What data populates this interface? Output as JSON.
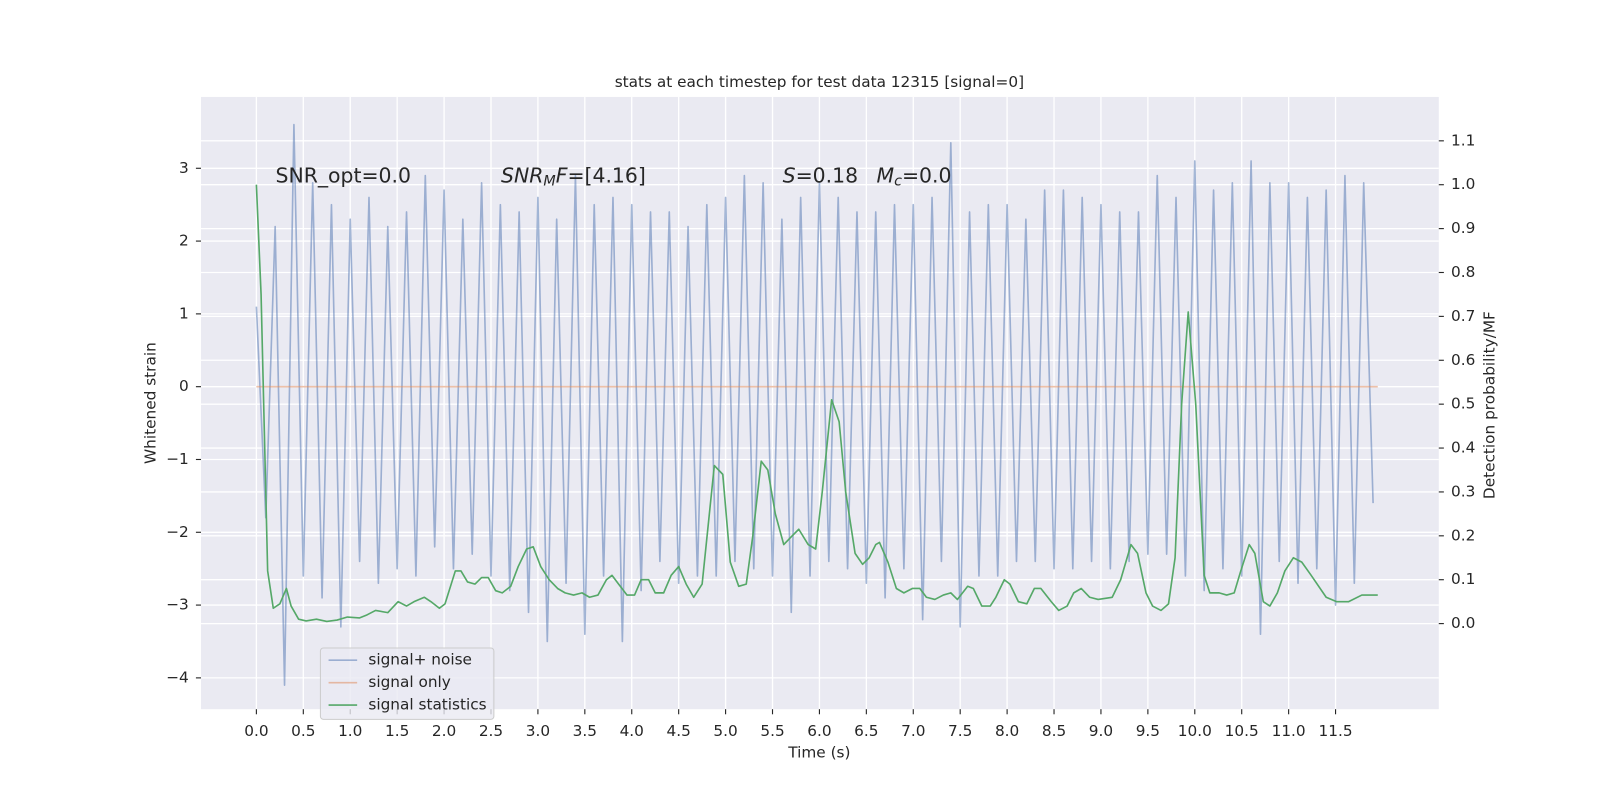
{
  "chart_data": {
    "type": "line",
    "title": "stats at each timestep for test data 12315 [signal=0]",
    "xlabel": "Time (s)",
    "ylabel": "Whitened strain",
    "y2label": "Detection probability/MF",
    "grid": true,
    "legend_loc": "lower left",
    "xlim": [
      -0.59,
      12.6
    ],
    "ylim": [
      -4.43,
      3.98
    ],
    "y2lim": [
      -0.195,
      1.2
    ],
    "xticks": [
      {
        "value": 0,
        "label": "0.0"
      },
      {
        "value": 0.5,
        "label": "0.5"
      },
      {
        "value": 1,
        "label": "1.0"
      },
      {
        "value": 1.5,
        "label": "1.5"
      },
      {
        "value": 2,
        "label": "2.0"
      },
      {
        "value": 2.5,
        "label": "2.5"
      },
      {
        "value": 3,
        "label": "3.0"
      },
      {
        "value": 3.5,
        "label": "3.5"
      },
      {
        "value": 4,
        "label": "4.0"
      },
      {
        "value": 4.5,
        "label": "4.5"
      },
      {
        "value": 5,
        "label": "5.0"
      },
      {
        "value": 5.5,
        "label": "5.5"
      },
      {
        "value": 6,
        "label": "6.0"
      },
      {
        "value": 6.5,
        "label": "6.5"
      },
      {
        "value": 7,
        "label": "7.0"
      },
      {
        "value": 7.5,
        "label": "7.5"
      },
      {
        "value": 8,
        "label": "8.0"
      },
      {
        "value": 8.5,
        "label": "8.5"
      },
      {
        "value": 9,
        "label": "9.0"
      },
      {
        "value": 9.5,
        "label": "9.5"
      },
      {
        "value": 10,
        "label": "10.0"
      },
      {
        "value": 10.5,
        "label": "10.5"
      },
      {
        "value": 11,
        "label": "11.0"
      },
      {
        "value": 11.5,
        "label": "11.5"
      }
    ],
    "yticks": [
      {
        "value": -4,
        "label": "−4"
      },
      {
        "value": -3,
        "label": "−3"
      },
      {
        "value": -2,
        "label": "−2"
      },
      {
        "value": -1,
        "label": "−1"
      },
      0,
      1,
      2,
      3
    ],
    "y2ticks": [
      {
        "value": 0,
        "label": "0.0"
      },
      {
        "value": 0.1,
        "label": "0.1"
      },
      {
        "value": 0.2,
        "label": "0.2"
      },
      {
        "value": 0.3,
        "label": "0.3"
      },
      {
        "value": 0.4,
        "label": "0.4"
      },
      {
        "value": 0.5,
        "label": "0.5"
      },
      {
        "value": 0.6,
        "label": "0.6"
      },
      {
        "value": 0.7,
        "label": "0.7"
      },
      {
        "value": 0.8,
        "label": "0.8"
      },
      {
        "value": 0.9,
        "label": "0.9"
      },
      {
        "value": 1,
        "label": "1.0"
      },
      {
        "value": 1.1,
        "label": "1.1"
      }
    ],
    "annotations": [
      [
        {
          "text": "SNR_opt=0.0"
        }
      ],
      [
        {
          "text": "SNR",
          "italic": true
        },
        {
          "text": "M",
          "italic": true,
          "sub": true
        },
        {
          "text": "F",
          "italic": true
        },
        {
          "text": "=[4.16]"
        }
      ],
      [
        {
          "text": "S",
          "italic": true
        },
        {
          "text": "=0.18"
        }
      ],
      [
        {
          "text": "M",
          "italic": true
        },
        {
          "text": "c",
          "italic": true,
          "sub": true
        },
        {
          "text": "=0.0"
        }
      ]
    ],
    "series": [
      {
        "name": "signal+ noise",
        "color": "#4c72b0",
        "alpha": 0.5,
        "x": [
          0,
          0.1,
          0.2,
          0.3,
          0.4,
          0.5,
          0.6,
          0.7,
          0.8,
          0.9,
          1,
          1.1,
          1.2,
          1.3,
          1.4,
          1.5,
          1.6,
          1.7,
          1.8,
          1.9,
          2,
          2.1,
          2.2,
          2.3,
          2.4,
          2.5,
          2.6,
          2.7,
          2.8,
          2.9,
          3,
          3.1,
          3.2,
          3.3,
          3.4,
          3.5,
          3.6,
          3.7,
          3.8,
          3.9,
          4,
          4.1,
          4.2,
          4.3,
          4.4,
          4.5,
          4.6,
          4.7,
          4.8,
          4.9,
          5,
          5.1,
          5.2,
          5.3,
          5.4,
          5.5,
          5.6,
          5.7,
          5.8,
          5.9,
          6,
          6.1,
          6.2,
          6.3,
          6.4,
          6.5,
          6.6,
          6.7,
          6.8,
          6.9,
          7,
          7.1,
          7.2,
          7.3,
          7.4,
          7.5,
          7.6,
          7.7,
          7.8,
          7.9,
          8,
          8.1,
          8.2,
          8.3,
          8.4,
          8.5,
          8.6,
          8.7,
          8.8,
          8.9,
          9,
          9.1,
          9.2,
          9.3,
          9.4,
          9.5,
          9.6,
          9.7,
          9.8,
          9.9,
          10,
          10.1,
          10.2,
          10.3,
          10.4,
          10.5,
          10.6,
          10.7,
          10.8,
          10.9,
          11,
          11.1,
          11.2,
          11.3,
          11.4,
          11.5,
          11.6,
          11.7,
          11.8,
          11.9
        ],
        "values": [
          1.1,
          -1.8,
          2.2,
          -4.1,
          3.6,
          -2.6,
          2.8,
          -2.9,
          2.5,
          -3.3,
          2.3,
          -2.4,
          2.6,
          -2.7,
          2.2,
          -2.5,
          2.4,
          -2.6,
          2.9,
          -2.2,
          2.7,
          -2.5,
          2.3,
          -2.3,
          2.8,
          -2.6,
          2.5,
          -2.8,
          2.4,
          -3.1,
          2.6,
          -3.5,
          2.3,
          -2.7,
          2.9,
          -3.4,
          2.5,
          -2.6,
          2.6,
          -3.5,
          2.5,
          -2.8,
          2.4,
          -2.4,
          2.4,
          -2.7,
          2.2,
          -2.6,
          2.5,
          -2.6,
          2.6,
          -2.4,
          2.9,
          -2.5,
          2.8,
          -2.6,
          2.3,
          -3.1,
          2.6,
          -2.6,
          2.8,
          -2.4,
          2.6,
          -2.5,
          2.4,
          -2.7,
          2.4,
          -2.9,
          2.5,
          -2.5,
          2.5,
          -3.2,
          2.6,
          -2.4,
          3.35,
          -3.3,
          2.4,
          -2.6,
          2.5,
          -2.6,
          2.5,
          -2.4,
          2.3,
          -2.4,
          2.7,
          -2.5,
          2.7,
          -2.5,
          2.6,
          -2.4,
          2.5,
          -2.5,
          2.4,
          -2.4,
          2.4,
          -2.3,
          2.9,
          -2.3,
          2.6,
          -2.6,
          3.1,
          -2.8,
          2.7,
          -2.5,
          2.8,
          -2.6,
          3.1,
          -3.4,
          2.8,
          -2.4,
          2.8,
          -2.7,
          2.6,
          -2.5,
          2.7,
          -3.0,
          2.9,
          -2.7,
          2.8,
          -1.6
        ]
      },
      {
        "name": "signal only",
        "color": "#dd8452",
        "alpha": 0.5,
        "x": [
          0,
          11.95
        ],
        "values": [
          0,
          0
        ]
      },
      {
        "name": "signal statistics",
        "color": "#55a868",
        "alpha": 1,
        "axis": "y2",
        "x": [
          0,
          0.05,
          0.12,
          0.18,
          0.25,
          0.32,
          0.37,
          0.45,
          0.53,
          0.64,
          0.75,
          0.86,
          0.97,
          1.1,
          1.18,
          1.27,
          1.4,
          1.51,
          1.6,
          1.68,
          1.79,
          1.86,
          1.95,
          2.01,
          2.12,
          2.18,
          2.25,
          2.33,
          2.4,
          2.47,
          2.55,
          2.62,
          2.71,
          2.79,
          2.88,
          2.95,
          3.03,
          3.12,
          3.21,
          3.29,
          3.38,
          3.47,
          3.55,
          3.64,
          3.73,
          3.79,
          3.86,
          3.95,
          4.03,
          4.1,
          4.18,
          4.25,
          4.34,
          4.42,
          4.5,
          4.58,
          4.66,
          4.75,
          4.88,
          4.97,
          5.05,
          5.14,
          5.22,
          5.29,
          5.38,
          5.45,
          5.53,
          5.62,
          5.71,
          5.78,
          5.88,
          5.96,
          6.03,
          6.13,
          6.21,
          6.28,
          6.38,
          6.46,
          6.53,
          6.6,
          6.64,
          6.73,
          6.82,
          6.9,
          6.99,
          7.07,
          7.14,
          7.23,
          7.32,
          7.4,
          7.47,
          7.58,
          7.64,
          7.73,
          7.82,
          7.88,
          7.97,
          8.03,
          8.12,
          8.21,
          8.29,
          8.36,
          8.47,
          8.55,
          8.64,
          8.71,
          8.79,
          8.88,
          8.97,
          9.12,
          9.21,
          9.32,
          9.39,
          9.48,
          9.55,
          9.64,
          9.72,
          9.79,
          9.86,
          9.93,
          10.01,
          10.1,
          10.16,
          10.26,
          10.34,
          10.42,
          10.49,
          10.58,
          10.64,
          10.73,
          10.8,
          10.88,
          10.96,
          11.05,
          11.14,
          11.24,
          11.4,
          11.51,
          11.64,
          11.78,
          11.95
        ],
        "values": [
          1.0,
          0.75,
          0.12,
          0.035,
          0.045,
          0.08,
          0.04,
          0.01,
          0.006,
          0.01,
          0.005,
          0.008,
          0.015,
          0.013,
          0.02,
          0.03,
          0.025,
          0.05,
          0.04,
          0.05,
          0.06,
          0.05,
          0.035,
          0.045,
          0.12,
          0.12,
          0.095,
          0.09,
          0.105,
          0.105,
          0.075,
          0.07,
          0.085,
          0.13,
          0.17,
          0.175,
          0.13,
          0.1,
          0.08,
          0.07,
          0.065,
          0.07,
          0.06,
          0.065,
          0.1,
          0.11,
          0.09,
          0.065,
          0.065,
          0.1,
          0.1,
          0.07,
          0.07,
          0.11,
          0.13,
          0.09,
          0.06,
          0.09,
          0.36,
          0.34,
          0.14,
          0.085,
          0.09,
          0.2,
          0.37,
          0.35,
          0.25,
          0.18,
          0.2,
          0.215,
          0.18,
          0.17,
          0.3,
          0.51,
          0.46,
          0.3,
          0.16,
          0.135,
          0.15,
          0.18,
          0.185,
          0.14,
          0.08,
          0.07,
          0.08,
          0.08,
          0.06,
          0.055,
          0.065,
          0.07,
          0.055,
          0.085,
          0.08,
          0.04,
          0.04,
          0.06,
          0.1,
          0.09,
          0.05,
          0.045,
          0.08,
          0.08,
          0.05,
          0.03,
          0.04,
          0.07,
          0.08,
          0.06,
          0.055,
          0.06,
          0.1,
          0.18,
          0.16,
          0.07,
          0.04,
          0.03,
          0.045,
          0.15,
          0.5,
          0.71,
          0.5,
          0.11,
          0.07,
          0.07,
          0.065,
          0.07,
          0.12,
          0.18,
          0.16,
          0.05,
          0.04,
          0.07,
          0.12,
          0.15,
          0.14,
          0.11,
          0.06,
          0.05,
          0.05,
          0.065,
          0.065
        ]
      }
    ]
  }
}
